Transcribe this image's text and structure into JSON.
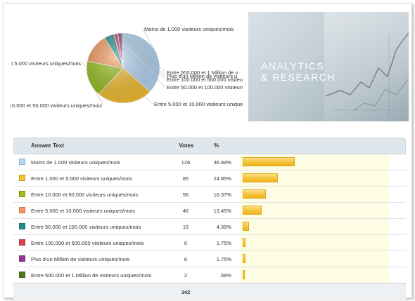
{
  "pie": {
    "labels": [
      "Moins de 1.000 visiteurs uniques/mois",
      "Entre 1.000 et 5.000 visiteurs uniques/mois",
      "Entre 10.000 et 50.000 viviteurs uniques/mois",
      "Entre 5.000 et 10.000 visiteurs uniques/mois",
      "Entre 50.000 et 100.000 visiteurs uniques/mois",
      "Entre 100.000 et 500.000 visiteurs uniques/mois",
      "Plus d'un Million de visiteurs uniques/mois",
      "Entre 500.000 et 1 Million de visiteurs uniques/mois"
    ],
    "labels_visible": [
      "Moins de 1.000 visiteurs uniques/mois",
      "t 5.000 visiteurs uniques/mois",
      "e 10.000 et 50.000 viviteurs uniques/mois",
      "Entre 5.000 et 10.000 visiteurs uniques/mois",
      "Entre 50.000 et 100.000 visiteurs",
      "Entre 100.000 et 500.000 visiteurs",
      "Plus d'un Million de visiteurs u",
      "Entre 500.000 et 1 Million de v"
    ]
  },
  "photo": {
    "line1": "ANALYTICS",
    "line2": "& RESEARCH"
  },
  "table": {
    "headers": {
      "answer": "Answer Text",
      "votes": "Votes",
      "pct": "%"
    },
    "total": "342"
  },
  "chart_data": {
    "type": "pie",
    "categories": [
      "Moins de 1.000 visiteurs uniques/mois",
      "Entre 1.000 et 5.000 visiteurs uniques/mois",
      "Entre 10.000 et 50.000 visiteurs uniques/mois",
      "Entre 5.000 et 10.000 visiteurs uniques/mois",
      "Entre 50.000 et 100.000 visiteurs uniques/mois",
      "Entre 100.000 et 500.000 visiteurs uniques/mois",
      "Plus d'un Million de visiteurs uniques/mois",
      "Entre 500.000 et 1 Million de visiteurs uniques/mois"
    ],
    "votes": [
      126,
      85,
      56,
      46,
      15,
      6,
      6,
      2
    ],
    "votes_text": [
      "126",
      "85",
      "56",
      "46",
      "15",
      "6",
      "6",
      "2"
    ],
    "percent_text": [
      "36.84%",
      "24.85%",
      "16.37%",
      "13.45%",
      "4.39%",
      "1.75%",
      "1.75%",
      ".58%"
    ],
    "values": [
      36.84,
      24.85,
      16.37,
      13.45,
      4.39,
      1.75,
      1.75,
      0.58
    ],
    "colors": [
      "#b6d8f7",
      "#f6c12e",
      "#99c01a",
      "#f7965a",
      "#1f8f8c",
      "#d9454b",
      "#8e3a8e",
      "#4f7a23"
    ],
    "title": "",
    "legend": "table"
  }
}
